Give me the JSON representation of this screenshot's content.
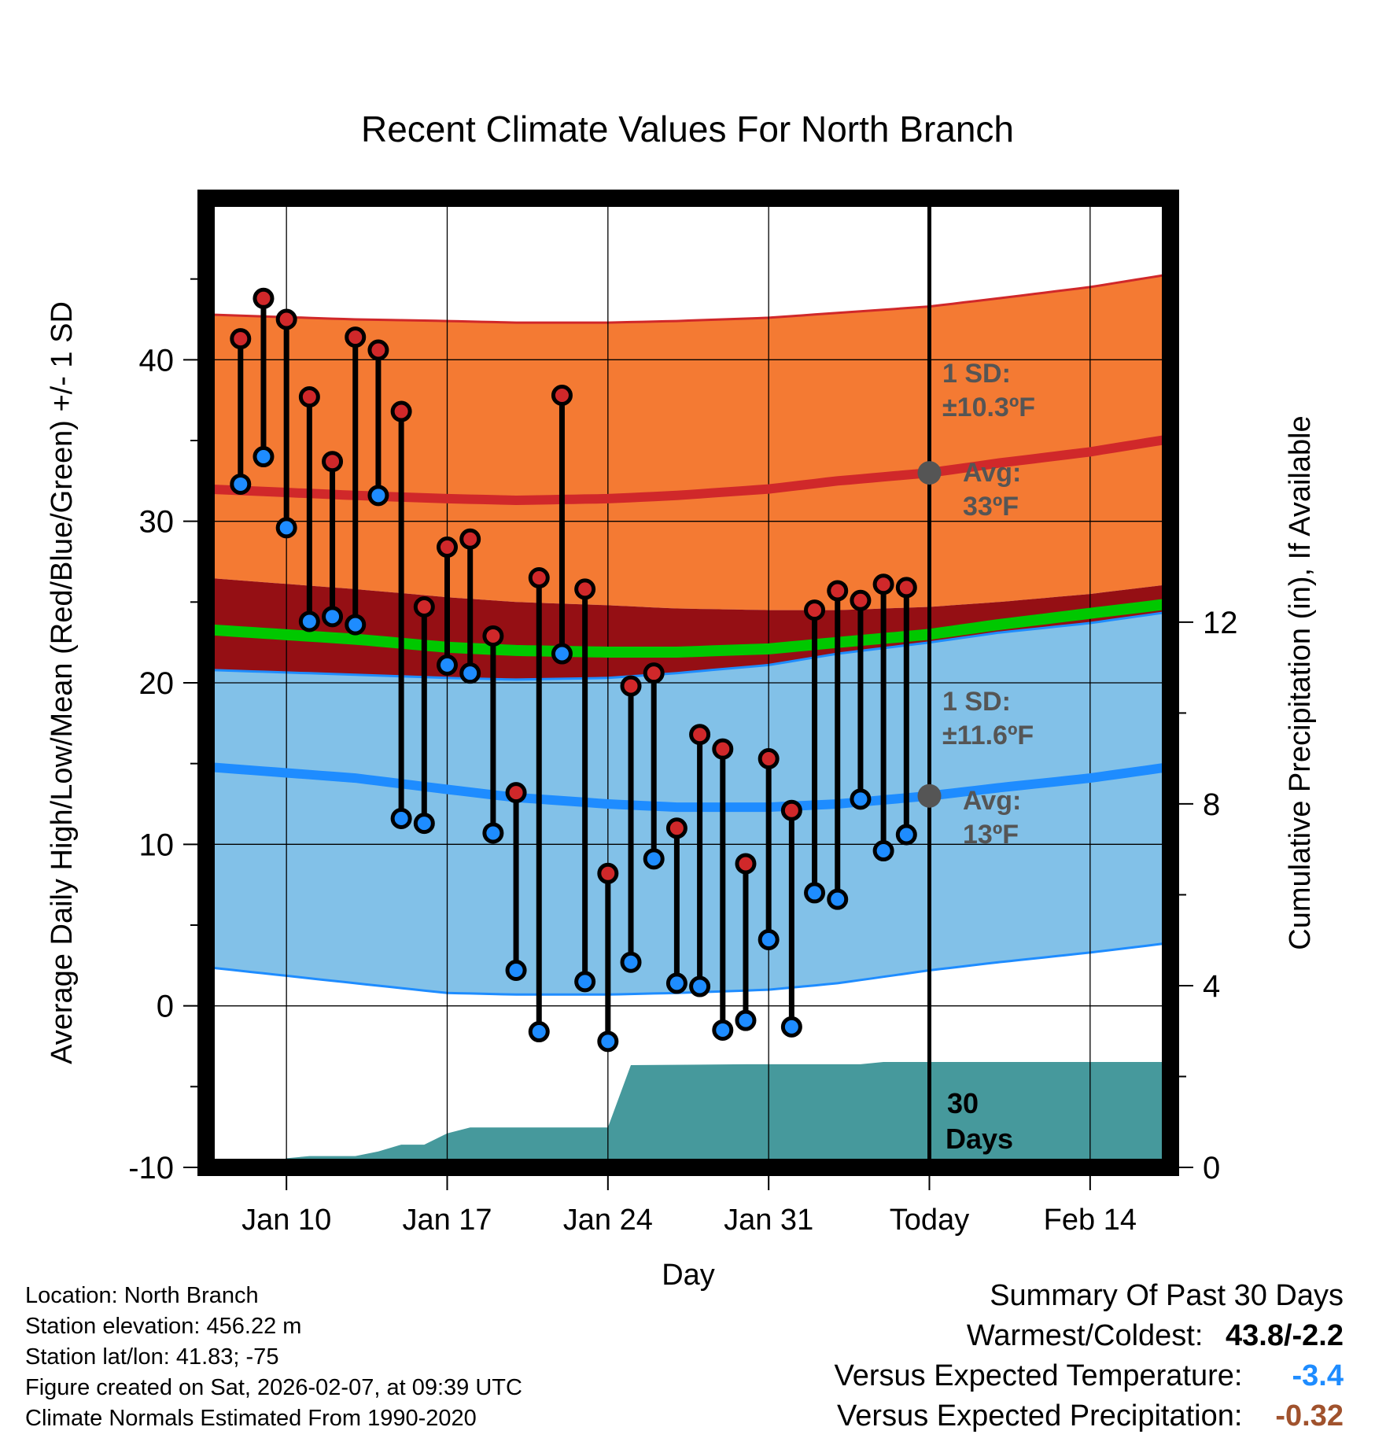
{
  "chart_data": {
    "type": "line",
    "title": "Recent Climate Values For North Branch",
    "xlabel": "Day",
    "ylabel": "Average Daily High/Low/Mean (Red/Blue/Green) +/- 1 SD",
    "y2label": "Cumulative Precipitation (in), If Available",
    "ylim": [
      -10,
      50
    ],
    "y2lim": [
      0,
      21.33
    ],
    "xlim": [
      -3.5,
      38.5
    ],
    "x_ticks": [
      {
        "x": 0,
        "label": "Jan 10"
      },
      {
        "x": 7,
        "label": "Jan 17"
      },
      {
        "x": 14,
        "label": "Jan 24"
      },
      {
        "x": 21,
        "label": "Jan 31"
      },
      {
        "x": 28,
        "label": "Today"
      },
      {
        "x": 35,
        "label": "Feb 14"
      }
    ],
    "y_ticks": [
      -10,
      0,
      10,
      20,
      30,
      40
    ],
    "y2_ticks": [
      0,
      4,
      8,
      12
    ],
    "today_x": 28,
    "normals": {
      "days": [
        -3.5,
        3,
        7,
        10,
        14,
        17,
        21,
        24,
        28,
        31,
        35,
        38.5
      ],
      "high_avg": [
        32.0,
        31.6,
        31.4,
        31.3,
        31.4,
        31.6,
        32.0,
        32.5,
        33.0,
        33.6,
        34.3,
        35.1
      ],
      "high_upper": [
        42.8,
        42.5,
        42.4,
        42.3,
        42.3,
        42.4,
        42.6,
        42.9,
        43.3,
        43.8,
        44.5,
        45.3
      ],
      "high_lower": [
        26.5,
        25.8,
        25.3,
        25.0,
        24.8,
        24.6,
        24.5,
        24.5,
        24.7,
        25.0,
        25.5,
        26.1
      ],
      "mean_avg": [
        23.3,
        22.7,
        22.2,
        22.0,
        21.9,
        21.9,
        22.1,
        22.5,
        23.0,
        23.6,
        24.3,
        24.9
      ],
      "low_avg": [
        14.8,
        14.1,
        13.4,
        12.9,
        12.5,
        12.3,
        12.3,
        12.5,
        13.0,
        13.5,
        14.1,
        14.8
      ],
      "low_upper": [
        20.8,
        20.5,
        20.3,
        20.2,
        20.3,
        20.6,
        21.1,
        21.8,
        22.5,
        23.1,
        23.7,
        24.4
      ],
      "low_lower": [
        2.4,
        1.4,
        0.8,
        0.7,
        0.7,
        0.8,
        1.0,
        1.4,
        2.2,
        2.7,
        3.3,
        3.9
      ]
    },
    "daily": {
      "days": [
        -2,
        -1,
        0,
        1,
        2,
        3,
        4,
        5,
        6,
        7,
        8,
        9,
        10,
        11,
        12,
        13,
        14,
        15,
        16,
        17,
        18,
        19,
        20,
        21,
        22,
        23,
        24,
        25,
        26,
        27
      ],
      "high": [
        41.3,
        43.8,
        42.5,
        37.7,
        33.7,
        41.4,
        40.6,
        36.8,
        24.7,
        28.4,
        28.9,
        22.9,
        13.2,
        26.5,
        37.8,
        25.8,
        8.2,
        19.8,
        20.6,
        11.0,
        16.8,
        15.9,
        8.8,
        15.3,
        12.1,
        24.5,
        25.7,
        25.1,
        26.1,
        25.9
      ],
      "low": [
        32.3,
        34.0,
        29.6,
        23.8,
        24.1,
        23.6,
        31.6,
        11.6,
        11.3,
        21.1,
        20.6,
        10.7,
        2.2,
        -1.6,
        21.8,
        1.5,
        -2.2,
        2.7,
        9.1,
        1.4,
        1.2,
        -1.5,
        -0.9,
        4.1,
        -1.3,
        7.0,
        6.6,
        12.8,
        9.6,
        10.6
      ]
    },
    "precip": {
      "days": [
        -3.5,
        -1,
        0,
        1,
        3,
        4,
        5,
        6,
        7,
        8,
        9,
        13,
        14,
        15,
        20,
        25,
        26,
        38.5
      ],
      "cumulative": [
        0,
        0,
        0.2,
        0.25,
        0.25,
        0.35,
        0.5,
        0.5,
        0.75,
        0.88,
        0.88,
        0.88,
        0.88,
        2.25,
        2.27,
        2.27,
        2.32,
        2.32
      ]
    },
    "annotations": {
      "high_sd_label": "1 SD:",
      "high_sd_value": "±10.3ºF",
      "high_avg_label": "Avg:",
      "high_avg_value": "33ºF",
      "low_sd_label": "1 SD:",
      "low_sd_value": "±11.6ºF",
      "low_avg_label": "Avg:",
      "low_avg_value": "13ºF",
      "period_line1": "30",
      "period_line2": "Days"
    },
    "colors": {
      "high_band": "#f47a33",
      "high_line": "#d0282a",
      "mean_band": "#950f14",
      "mean_line": "#00c800",
      "low_band": "#82c1e8",
      "low_line": "#1e8cff",
      "precip": "#46999c",
      "high_marker": "#d0282a",
      "low_marker": "#1e8cff",
      "annotation": "#555555"
    }
  },
  "footer": {
    "location": "Location: North Branch",
    "elevation": "Station elevation: 456.22 m",
    "latlon": "Station lat/lon: 41.83; -75",
    "created": "Figure created on Sat, 2026-02-07, at 09:39 UTC",
    "normals": "Climate Normals Estimated From 1990-2020"
  },
  "summary": {
    "title": "Summary Of Past 30 Days",
    "warm_cold_label": "Warmest/Coldest:",
    "warm_cold_value": "43.8/-2.2",
    "temp_label": "Versus Expected Temperature:",
    "temp_value": "-3.4",
    "temp_color": "#1e8cff",
    "precip_label": "Versus Expected Precipitation:",
    "precip_value": "-0.32",
    "precip_color": "#a0522d"
  }
}
